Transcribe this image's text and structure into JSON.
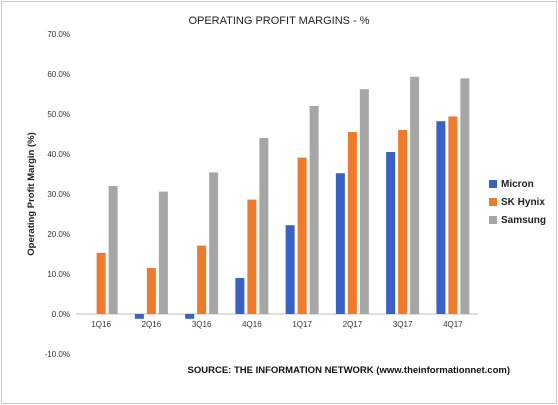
{
  "chart_data": {
    "type": "bar",
    "title": "OPERATING PROFIT MARGINS - %",
    "ylabel": "Operating Profit Margin (%)",
    "xlabel": "",
    "categories": [
      "1Q16",
      "2Q16",
      "3Q16",
      "4Q16",
      "1Q17",
      "2Q17",
      "3Q17",
      "4Q17"
    ],
    "ylim": [
      -10,
      70
    ],
    "ytick_labels": [
      "70.0%",
      "60.0%",
      "50.0%",
      "40.0%",
      "30.0%",
      "20.0%",
      "10.0%",
      "0.0%",
      "-10.0%"
    ],
    "series": [
      {
        "name": "Micron",
        "color": "#3a62c4",
        "values": [
          0,
          -1.2,
          -1.2,
          9.0,
          22.2,
          35.2,
          40.5,
          48.2
        ]
      },
      {
        "name": "SK Hynix",
        "color": "#f07a2c",
        "values": [
          15.3,
          11.5,
          17.1,
          28.6,
          39.1,
          45.5,
          46.0,
          49.4
        ]
      },
      {
        "name": "Samsung",
        "color": "#a6a6a6",
        "values": [
          32.0,
          30.6,
          35.4,
          44.0,
          52.0,
          56.2,
          59.3,
          58.9
        ]
      }
    ],
    "grid": false,
    "legend_position": "right",
    "source": "SOURCE: THE INFORMATION  NETWORK (www.theinformationnet.com)"
  }
}
